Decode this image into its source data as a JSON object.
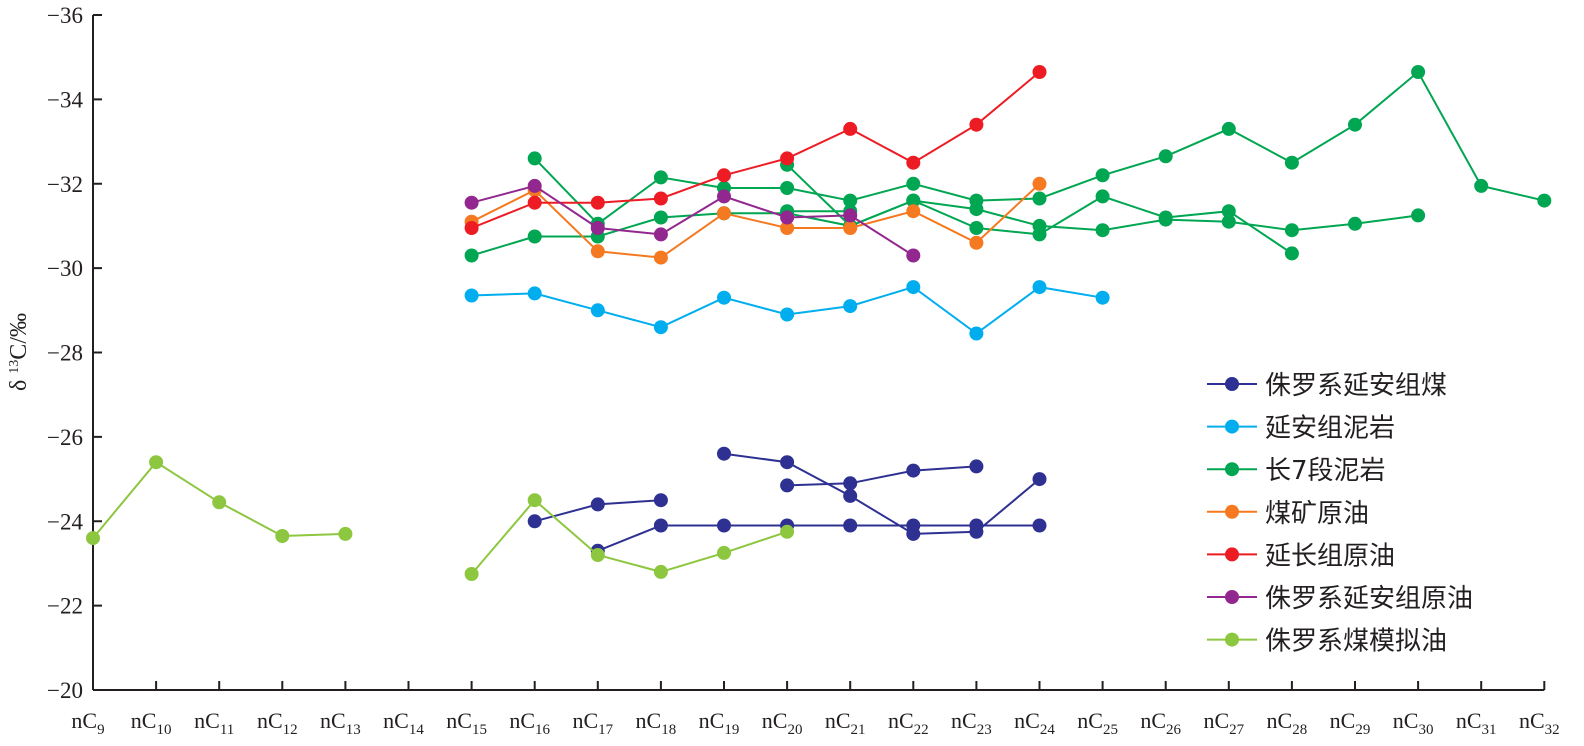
{
  "chart_data": {
    "type": "line",
    "ylabel": "δ13C/‰",
    "ylim": [
      -20,
      -36
    ],
    "y_ticks": [
      -20,
      -22,
      -24,
      -26,
      -28,
      -30,
      -32,
      -34,
      -36
    ],
    "categories": [
      "nC9",
      "nC10",
      "nC11",
      "nC12",
      "nC13",
      "nC14",
      "nC15",
      "nC16",
      "nC17",
      "nC18",
      "nC19",
      "nC20",
      "nC21",
      "nC22",
      "nC23",
      "nC24",
      "nC25",
      "nC26",
      "nC27",
      "nC28",
      "nC29",
      "nC30",
      "nC31",
      "nC32"
    ],
    "legend_position": "right",
    "series": [
      {
        "name": "侏罗系延安组煤",
        "color": "#2e3192",
        "lines": [
          [
            [
              7,
              -24.0
            ],
            [
              8,
              -24.4
            ],
            [
              9,
              -24.5
            ]
          ],
          [
            [
              8,
              -23.3
            ],
            [
              9,
              -23.9
            ],
            [
              10,
              -23.9
            ],
            [
              11,
              -23.9
            ],
            [
              12,
              -23.9
            ],
            [
              13,
              -23.9
            ],
            [
              14,
              -23.9
            ],
            [
              15,
              -23.9
            ]
          ],
          [
            [
              10,
              -25.6
            ],
            [
              11,
              -25.4
            ],
            [
              12,
              -24.6
            ],
            [
              13,
              -23.7
            ],
            [
              14,
              -23.75
            ],
            [
              15,
              -25.0
            ]
          ],
          [
            [
              11,
              -24.85
            ],
            [
              12,
              -24.9
            ],
            [
              13,
              -25.2
            ],
            [
              14,
              -25.3
            ]
          ]
        ]
      },
      {
        "name": "延安组泥岩",
        "color": "#00aeef",
        "lines": [
          [
            [
              6,
              -29.35
            ],
            [
              7,
              -29.4
            ],
            [
              8,
              -29.0
            ],
            [
              9,
              -28.6
            ],
            [
              10,
              -29.3
            ],
            [
              11,
              -28.9
            ],
            [
              12,
              -29.1
            ],
            [
              13,
              -29.55
            ],
            [
              14,
              -28.45
            ],
            [
              15,
              -29.55
            ],
            [
              16,
              -29.3
            ]
          ]
        ]
      },
      {
        "name": "长7段泥岩",
        "color": "#00a651",
        "lines": [
          [
            [
              6,
              -30.3
            ],
            [
              7,
              -30.75
            ],
            [
              8,
              -30.75
            ],
            [
              9,
              -31.2
            ],
            [
              10,
              -31.3
            ],
            [
              11,
              -31.3
            ],
            [
              12,
              -31.0
            ],
            [
              13,
              -31.6
            ],
            [
              14,
              -31.4
            ],
            [
              15,
              -31.0
            ],
            [
              16,
              -30.9
            ],
            [
              17,
              -31.15
            ],
            [
              18,
              -31.1
            ],
            [
              19,
              -30.9
            ],
            [
              20,
              -31.05
            ],
            [
              21,
              -31.25
            ]
          ],
          [
            [
              7,
              -32.6
            ],
            [
              8,
              -31.05
            ],
            [
              9,
              -32.15
            ],
            [
              10,
              -31.9
            ],
            [
              11,
              -31.9
            ],
            [
              12,
              -31.6
            ],
            [
              13,
              -32.0
            ],
            [
              14,
              -31.6
            ],
            [
              15,
              -31.65
            ],
            [
              16,
              -32.2
            ],
            [
              17,
              -32.65
            ],
            [
              18,
              -33.3
            ],
            [
              19,
              -32.5
            ],
            [
              20,
              -33.4
            ],
            [
              21,
              -34.65
            ],
            [
              22,
              -31.95
            ],
            [
              23,
              -31.6
            ]
          ],
          [
            [
              11,
              -32.45
            ],
            [
              12,
              -31.0
            ],
            [
              13,
              -31.6
            ],
            [
              14,
              -30.95
            ],
            [
              15,
              -30.8
            ],
            [
              16,
              -31.7
            ],
            [
              17,
              -31.2
            ],
            [
              18,
              -31.35
            ],
            [
              19,
              -30.35
            ]
          ],
          [
            [
              11,
              -31.35
            ],
            [
              12,
              -31.35
            ]
          ]
        ]
      },
      {
        "name": "煤矿原油",
        "color": "#f47920",
        "lines": [
          [
            [
              6,
              -31.1
            ],
            [
              7,
              -31.85
            ],
            [
              8,
              -30.4
            ],
            [
              9,
              -30.25
            ],
            [
              10,
              -31.3
            ],
            [
              11,
              -30.95
            ],
            [
              12,
              -30.95
            ],
            [
              13,
              -31.35
            ],
            [
              14,
              -30.6
            ],
            [
              15,
              -32.0
            ]
          ]
        ]
      },
      {
        "name": "延长组原油",
        "color": "#ed1c24",
        "lines": [
          [
            [
              6,
              -30.95
            ],
            [
              7,
              -31.55
            ],
            [
              8,
              -31.55
            ],
            [
              9,
              -31.65
            ],
            [
              10,
              -32.2
            ],
            [
              11,
              -32.6
            ],
            [
              12,
              -33.3
            ],
            [
              13,
              -32.5
            ],
            [
              14,
              -33.4
            ],
            [
              15,
              -34.65
            ]
          ]
        ]
      },
      {
        "name": "侏罗系延安组原油",
        "color": "#92278f",
        "lines": [
          [
            [
              6,
              -31.55
            ],
            [
              7,
              -31.95
            ],
            [
              8,
              -30.95
            ],
            [
              9,
              -30.8
            ],
            [
              10,
              -31.7
            ],
            [
              11,
              -31.2
            ],
            [
              12,
              -31.25
            ],
            [
              13,
              -30.3
            ]
          ]
        ]
      },
      {
        "name": "侏罗系煤模拟油",
        "color": "#8dc63f",
        "lines": [
          [
            [
              0,
              -23.6
            ],
            [
              1,
              -25.4
            ],
            [
              2,
              -24.45
            ],
            [
              3,
              -23.65
            ],
            [
              4,
              -23.7
            ]
          ],
          [
            [
              6,
              -22.75
            ],
            [
              7,
              -24.5
            ],
            [
              8,
              -23.2
            ],
            [
              9,
              -22.8
            ],
            [
              10,
              -23.25
            ],
            [
              11,
              -23.75
            ]
          ]
        ]
      }
    ]
  }
}
